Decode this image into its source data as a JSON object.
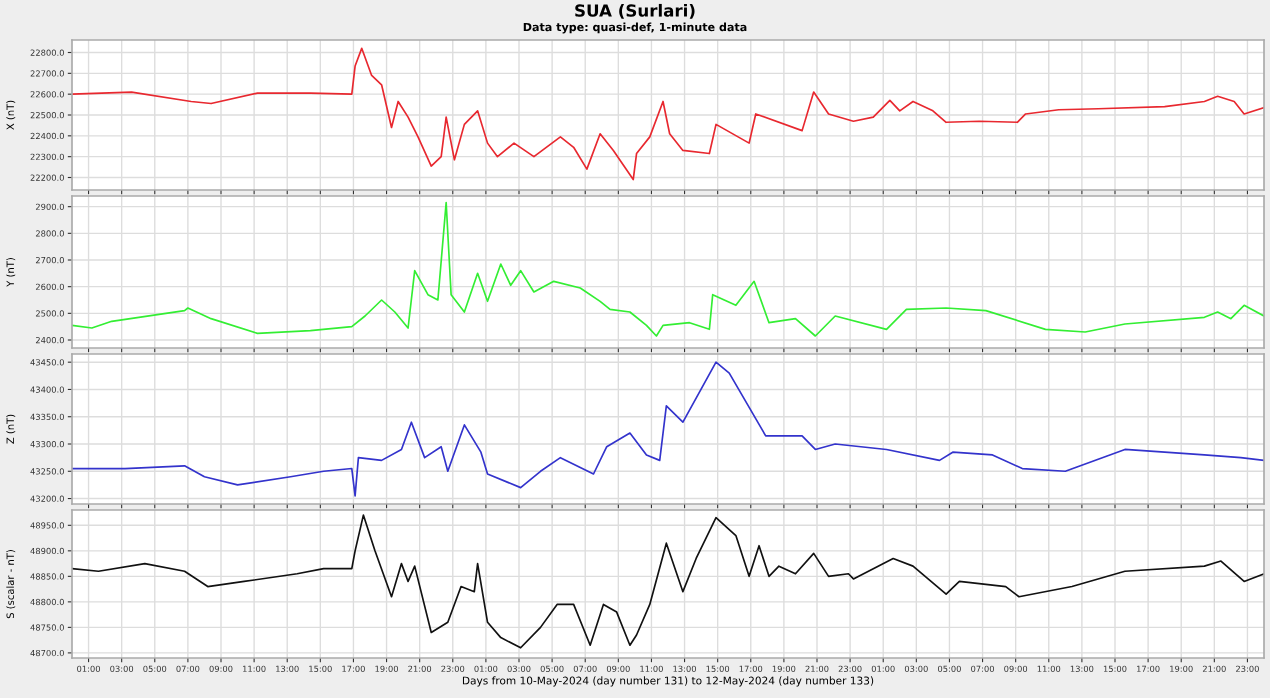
{
  "chart_data": [
    {
      "type": "line",
      "title": "SUA (Surlari)",
      "subtitle": "Data type: quasi-def, 1-minute data",
      "ylabel": "X (nT)",
      "grid": true,
      "tick_labels": "y",
      "xlim": [
        "2024-05-10T00:00",
        "2024-05-13T00:00"
      ],
      "xticks": [
        {
          "value": "2024-05-10T01:00",
          "label": null
        },
        {
          "value": "2024-05-10T03:00",
          "label": null
        },
        {
          "value": "2024-05-10T05:00",
          "label": null
        },
        {
          "value": "2024-05-10T07:00",
          "label": null
        },
        {
          "value": "2024-05-10T09:00",
          "label": null
        },
        {
          "value": "2024-05-10T11:00",
          "label": null
        },
        {
          "value": "2024-05-10T13:00",
          "label": null
        },
        {
          "value": "2024-05-10T15:00",
          "label": null
        },
        {
          "value": "2024-05-10T17:00",
          "label": null
        },
        {
          "value": "2024-05-10T19:00",
          "label": null
        },
        {
          "value": "2024-05-10T21:00",
          "label": null
        },
        {
          "value": "2024-05-10T23:00",
          "label": null
        },
        {
          "value": "2024-05-11T01:00",
          "label": null
        },
        {
          "value": "2024-05-11T03:00",
          "label": null
        },
        {
          "value": "2024-05-11T05:00",
          "label": null
        },
        {
          "value": "2024-05-11T07:00",
          "label": null
        },
        {
          "value": "2024-05-11T09:00",
          "label": null
        },
        {
          "value": "2024-05-11T11:00",
          "label": null
        },
        {
          "value": "2024-05-11T13:00",
          "label": null
        },
        {
          "value": "2024-05-11T15:00",
          "label": null
        },
        {
          "value": "2024-05-11T17:00",
          "label": null
        },
        {
          "value": "2024-05-11T19:00",
          "label": null
        },
        {
          "value": "2024-05-11T21:00",
          "label": null
        },
        {
          "value": "2024-05-11T23:00",
          "label": null
        },
        {
          "value": "2024-05-12T01:00",
          "label": null
        },
        {
          "value": "2024-05-12T03:00",
          "label": null
        },
        {
          "value": "2024-05-12T05:00",
          "label": null
        },
        {
          "value": "2024-05-12T07:00",
          "label": null
        },
        {
          "value": "2024-05-12T09:00",
          "label": null
        },
        {
          "value": "2024-05-12T11:00",
          "label": null
        },
        {
          "value": "2024-05-12T13:00",
          "label": null
        },
        {
          "value": "2024-05-12T15:00",
          "label": null
        },
        {
          "value": "2024-05-12T17:00",
          "label": null
        },
        {
          "value": "2024-05-12T19:00",
          "label": null
        },
        {
          "value": "2024-05-12T21:00",
          "label": null
        },
        {
          "value": "2024-05-12T23:00",
          "label": null
        }
      ],
      "ylim": [
        22140,
        22860
      ],
      "yticks": [
        {
          "value": 22200,
          "label": "22200.0"
        },
        {
          "value": 22300,
          "label": "22300.0"
        },
        {
          "value": 22400,
          "label": "22400.0"
        },
        {
          "value": 22500,
          "label": "22500.0"
        },
        {
          "value": 22600,
          "label": "22600.0"
        },
        {
          "value": 22700,
          "label": "22700.0"
        },
        {
          "value": 22800,
          "label": "22800.0"
        }
      ],
      "series": [
        {
          "color": "#e8282f",
          "x": [
            "2024-05-10T00:00",
            "2024-05-10T03:36",
            "2024-05-10T07:12",
            "2024-05-10T08:24",
            "2024-05-10T11:12",
            "2024-05-10T14:24",
            "2024-05-10T16:54",
            "2024-05-10T17:06",
            "2024-05-10T17:30",
            "2024-05-10T18:06",
            "2024-05-10T18:42",
            "2024-05-10T19:18",
            "2024-05-10T19:42",
            "2024-05-10T20:18",
            "2024-05-10T20:54",
            "2024-05-10T21:42",
            "2024-05-10T22:18",
            "2024-05-10T22:36",
            "2024-05-10T23:06",
            "2024-05-10T23:42",
            "2024-05-11T00:30",
            "2024-05-11T01:06",
            "2024-05-11T01:42",
            "2024-05-11T02:42",
            "2024-05-11T03:54",
            "2024-05-11T05:30",
            "2024-05-11T06:18",
            "2024-05-11T07:06",
            "2024-05-11T07:54",
            "2024-05-11T08:42",
            "2024-05-11T09:54",
            "2024-05-11T10:06",
            "2024-05-11T10:54",
            "2024-05-11T11:42",
            "2024-05-11T12:06",
            "2024-05-11T12:54",
            "2024-05-11T14:30",
            "2024-05-11T14:54",
            "2024-05-11T16:54",
            "2024-05-11T17:18",
            "2024-05-11T20:06",
            "2024-05-11T20:48",
            "2024-05-11T21:42",
            "2024-05-11T23:12",
            "2024-05-12T00:24",
            "2024-05-12T01:24",
            "2024-05-12T02:00",
            "2024-05-12T02:48",
            "2024-05-12T04:00",
            "2024-05-12T04:48",
            "2024-05-12T06:48",
            "2024-05-12T09:06",
            "2024-05-12T09:36",
            "2024-05-12T11:36",
            "2024-05-12T14:00",
            "2024-05-12T18:00",
            "2024-05-12T20:24",
            "2024-05-12T21:12",
            "2024-05-12T22:12",
            "2024-05-12T22:48",
            "2024-05-13T00:00"
          ],
          "values": [
            22600,
            22610,
            22565,
            22555,
            22605,
            22605,
            22600,
            22735,
            22820,
            22690,
            22645,
            22440,
            22565,
            22490,
            22395,
            22255,
            22300,
            22490,
            22285,
            22455,
            22520,
            22365,
            22300,
            22365,
            22300,
            22395,
            22345,
            22240,
            22410,
            22330,
            22190,
            22315,
            22395,
            22565,
            22410,
            22330,
            22315,
            22455,
            22365,
            22505,
            22425,
            22610,
            22505,
            22470,
            22490,
            22570,
            22520,
            22565,
            22520,
            22465,
            22470,
            22465,
            22505,
            22525,
            22530,
            22540,
            22565,
            22590,
            22565,
            22505,
            22535
          ]
        }
      ]
    },
    {
      "type": "line",
      "ylabel": "Y (nT)",
      "grid": true,
      "tick_labels": "y",
      "xlim": [
        "2024-05-10T00:00",
        "2024-05-13T00:00"
      ],
      "xticks": [
        {
          "value": "2024-05-10T01:00",
          "label": null
        },
        {
          "value": "2024-05-10T03:00",
          "label": null
        },
        {
          "value": "2024-05-10T05:00",
          "label": null
        },
        {
          "value": "2024-05-10T07:00",
          "label": null
        },
        {
          "value": "2024-05-10T09:00",
          "label": null
        },
        {
          "value": "2024-05-10T11:00",
          "label": null
        },
        {
          "value": "2024-05-10T13:00",
          "label": null
        },
        {
          "value": "2024-05-10T15:00",
          "label": null
        },
        {
          "value": "2024-05-10T17:00",
          "label": null
        },
        {
          "value": "2024-05-10T19:00",
          "label": null
        },
        {
          "value": "2024-05-10T21:00",
          "label": null
        },
        {
          "value": "2024-05-10T23:00",
          "label": null
        },
        {
          "value": "2024-05-11T01:00",
          "label": null
        },
        {
          "value": "2024-05-11T03:00",
          "label": null
        },
        {
          "value": "2024-05-11T05:00",
          "label": null
        },
        {
          "value": "2024-05-11T07:00",
          "label": null
        },
        {
          "value": "2024-05-11T09:00",
          "label": null
        },
        {
          "value": "2024-05-11T11:00",
          "label": null
        },
        {
          "value": "2024-05-11T13:00",
          "label": null
        },
        {
          "value": "2024-05-11T15:00",
          "label": null
        },
        {
          "value": "2024-05-11T17:00",
          "label": null
        },
        {
          "value": "2024-05-11T19:00",
          "label": null
        },
        {
          "value": "2024-05-11T21:00",
          "label": null
        },
        {
          "value": "2024-05-11T23:00",
          "label": null
        },
        {
          "value": "2024-05-12T01:00",
          "label": null
        },
        {
          "value": "2024-05-12T03:00",
          "label": null
        },
        {
          "value": "2024-05-12T05:00",
          "label": null
        },
        {
          "value": "2024-05-12T07:00",
          "label": null
        },
        {
          "value": "2024-05-12T09:00",
          "label": null
        },
        {
          "value": "2024-05-12T11:00",
          "label": null
        },
        {
          "value": "2024-05-12T13:00",
          "label": null
        },
        {
          "value": "2024-05-12T15:00",
          "label": null
        },
        {
          "value": "2024-05-12T17:00",
          "label": null
        },
        {
          "value": "2024-05-12T19:00",
          "label": null
        },
        {
          "value": "2024-05-12T21:00",
          "label": null
        },
        {
          "value": "2024-05-12T23:00",
          "label": null
        }
      ],
      "ylim": [
        2370,
        2940
      ],
      "yticks": [
        {
          "value": 2400,
          "label": "2400.0"
        },
        {
          "value": 2500,
          "label": "2500.0"
        },
        {
          "value": 2600,
          "label": "2600.0"
        },
        {
          "value": 2700,
          "label": "2700.0"
        },
        {
          "value": 2800,
          "label": "2800.0"
        },
        {
          "value": 2900,
          "label": "2900.0"
        }
      ],
      "series": [
        {
          "color": "#33ee33",
          "x": [
            "2024-05-10T00:00",
            "2024-05-10T01:12",
            "2024-05-10T02:24",
            "2024-05-10T06:48",
            "2024-05-10T07:00",
            "2024-05-10T08:24",
            "2024-05-10T11:12",
            "2024-05-10T14:24",
            "2024-05-10T16:54",
            "2024-05-10T17:42",
            "2024-05-10T18:42",
            "2024-05-10T19:30",
            "2024-05-10T20:18",
            "2024-05-10T20:42",
            "2024-05-10T21:30",
            "2024-05-10T22:06",
            "2024-05-10T22:36",
            "2024-05-10T22:54",
            "2024-05-10T23:42",
            "2024-05-11T00:30",
            "2024-05-11T01:06",
            "2024-05-11T01:54",
            "2024-05-11T02:30",
            "2024-05-11T03:06",
            "2024-05-11T03:54",
            "2024-05-11T05:06",
            "2024-05-11T06:42",
            "2024-05-11T07:54",
            "2024-05-11T08:30",
            "2024-05-11T09:42",
            "2024-05-11T10:42",
            "2024-05-11T11:18",
            "2024-05-11T11:42",
            "2024-05-11T13:18",
            "2024-05-11T14:30",
            "2024-05-11T14:42",
            "2024-05-11T16:06",
            "2024-05-11T17:12",
            "2024-05-11T18:06",
            "2024-05-11T19:42",
            "2024-05-11T20:54",
            "2024-05-11T22:06",
            "2024-05-12T01:12",
            "2024-05-12T02:24",
            "2024-05-12T04:48",
            "2024-05-12T07:12",
            "2024-05-12T10:48",
            "2024-05-12T13:12",
            "2024-05-12T15:36",
            "2024-05-12T20:24",
            "2024-05-12T21:12",
            "2024-05-12T22:00",
            "2024-05-12T22:48",
            "2024-05-13T00:00"
          ],
          "values": [
            2455,
            2445,
            2470,
            2510,
            2520,
            2480,
            2425,
            2435,
            2450,
            2490,
            2550,
            2505,
            2445,
            2660,
            2570,
            2550,
            2915,
            2570,
            2505,
            2650,
            2545,
            2685,
            2605,
            2660,
            2580,
            2620,
            2595,
            2545,
            2515,
            2505,
            2455,
            2415,
            2455,
            2465,
            2440,
            2570,
            2530,
            2620,
            2465,
            2480,
            2415,
            2490,
            2440,
            2515,
            2520,
            2510,
            2440,
            2430,
            2460,
            2485,
            2505,
            2480,
            2530,
            2490
          ]
        }
      ]
    },
    {
      "type": "line",
      "ylabel": "Z (nT)",
      "grid": true,
      "tick_labels": "y",
      "xlim": [
        "2024-05-10T00:00",
        "2024-05-13T00:00"
      ],
      "xticks": [
        {
          "value": "2024-05-10T01:00",
          "label": null
        },
        {
          "value": "2024-05-10T03:00",
          "label": null
        },
        {
          "value": "2024-05-10T05:00",
          "label": null
        },
        {
          "value": "2024-05-10T07:00",
          "label": null
        },
        {
          "value": "2024-05-10T09:00",
          "label": null
        },
        {
          "value": "2024-05-10T11:00",
          "label": null
        },
        {
          "value": "2024-05-10T13:00",
          "label": null
        },
        {
          "value": "2024-05-10T15:00",
          "label": null
        },
        {
          "value": "2024-05-10T17:00",
          "label": null
        },
        {
          "value": "2024-05-10T19:00",
          "label": null
        },
        {
          "value": "2024-05-10T21:00",
          "label": null
        },
        {
          "value": "2024-05-10T23:00",
          "label": null
        },
        {
          "value": "2024-05-11T01:00",
          "label": null
        },
        {
          "value": "2024-05-11T03:00",
          "label": null
        },
        {
          "value": "2024-05-11T05:00",
          "label": null
        },
        {
          "value": "2024-05-11T07:00",
          "label": null
        },
        {
          "value": "2024-05-11T09:00",
          "label": null
        },
        {
          "value": "2024-05-11T11:00",
          "label": null
        },
        {
          "value": "2024-05-11T13:00",
          "label": null
        },
        {
          "value": "2024-05-11T15:00",
          "label": null
        },
        {
          "value": "2024-05-11T17:00",
          "label": null
        },
        {
          "value": "2024-05-11T19:00",
          "label": null
        },
        {
          "value": "2024-05-11T21:00",
          "label": null
        },
        {
          "value": "2024-05-11T23:00",
          "label": null
        },
        {
          "value": "2024-05-12T01:00",
          "label": null
        },
        {
          "value": "2024-05-12T03:00",
          "label": null
        },
        {
          "value": "2024-05-12T05:00",
          "label": null
        },
        {
          "value": "2024-05-12T07:00",
          "label": null
        },
        {
          "value": "2024-05-12T09:00",
          "label": null
        },
        {
          "value": "2024-05-12T11:00",
          "label": null
        },
        {
          "value": "2024-05-12T13:00",
          "label": null
        },
        {
          "value": "2024-05-12T15:00",
          "label": null
        },
        {
          "value": "2024-05-12T17:00",
          "label": null
        },
        {
          "value": "2024-05-12T19:00",
          "label": null
        },
        {
          "value": "2024-05-12T21:00",
          "label": null
        },
        {
          "value": "2024-05-12T23:00",
          "label": null
        }
      ],
      "ylim": [
        43190,
        43465
      ],
      "yticks": [
        {
          "value": 43200,
          "label": "43200.0"
        },
        {
          "value": 43250,
          "label": "43250.0"
        },
        {
          "value": 43300,
          "label": "43300.0"
        },
        {
          "value": 43350,
          "label": "43350.0"
        },
        {
          "value": 43400,
          "label": "43400.0"
        },
        {
          "value": 43450,
          "label": "43450.0"
        }
      ],
      "series": [
        {
          "color": "#3333cc",
          "x": [
            "2024-05-10T00:00",
            "2024-05-10T03:12",
            "2024-05-10T06:48",
            "2024-05-10T08:00",
            "2024-05-10T10:00",
            "2024-05-10T13:12",
            "2024-05-10T15:12",
            "2024-05-10T16:54",
            "2024-05-10T17:06",
            "2024-05-10T17:18",
            "2024-05-10T18:42",
            "2024-05-10T19:54",
            "2024-05-10T20:30",
            "2024-05-10T21:18",
            "2024-05-10T22:18",
            "2024-05-10T22:42",
            "2024-05-10T23:42",
            "2024-05-11T00:42",
            "2024-05-11T01:06",
            "2024-05-11T03:06",
            "2024-05-11T04:18",
            "2024-05-11T05:30",
            "2024-05-11T07:30",
            "2024-05-11T08:18",
            "2024-05-11T09:42",
            "2024-05-11T10:42",
            "2024-05-11T11:30",
            "2024-05-11T11:54",
            "2024-05-11T12:54",
            "2024-05-11T14:54",
            "2024-05-11T15:42",
            "2024-05-11T17:54",
            "2024-05-11T20:06",
            "2024-05-11T20:54",
            "2024-05-11T22:06",
            "2024-05-12T01:12",
            "2024-05-12T04:24",
            "2024-05-12T05:12",
            "2024-05-12T07:36",
            "2024-05-12T09:24",
            "2024-05-12T12:00",
            "2024-05-12T15:36",
            "2024-05-12T20:24",
            "2024-05-12T22:36",
            "2024-05-13T00:00"
          ],
          "values": [
            43255,
            43255,
            43260,
            43240,
            43225,
            43240,
            43250,
            43255,
            43205,
            43275,
            43270,
            43290,
            43340,
            43275,
            43295,
            43250,
            43335,
            43285,
            43245,
            43220,
            43250,
            43275,
            43245,
            43295,
            43320,
            43280,
            43270,
            43370,
            43340,
            43450,
            43430,
            43315,
            43315,
            43290,
            43300,
            43290,
            43270,
            43285,
            43280,
            43255,
            43250,
            43290,
            43280,
            43275,
            43270
          ]
        }
      ]
    },
    {
      "type": "line",
      "ylabel": "S (scalar - nT)",
      "xlabel": "Days from 10-May-2024 (day number 131) to 12-May-2024 (day number 133)",
      "grid": true,
      "xlim": [
        "2024-05-10T00:00",
        "2024-05-13T00:00"
      ],
      "xticks": [
        {
          "value": "2024-05-10T01:00",
          "label": "01:00"
        },
        {
          "value": "2024-05-10T03:00",
          "label": "03:00"
        },
        {
          "value": "2024-05-10T05:00",
          "label": "05:00"
        },
        {
          "value": "2024-05-10T07:00",
          "label": "07:00"
        },
        {
          "value": "2024-05-10T09:00",
          "label": "09:00"
        },
        {
          "value": "2024-05-10T11:00",
          "label": "11:00"
        },
        {
          "value": "2024-05-10T13:00",
          "label": "13:00"
        },
        {
          "value": "2024-05-10T15:00",
          "label": "15:00"
        },
        {
          "value": "2024-05-10T17:00",
          "label": "17:00"
        },
        {
          "value": "2024-05-10T19:00",
          "label": "19:00"
        },
        {
          "value": "2024-05-10T21:00",
          "label": "21:00"
        },
        {
          "value": "2024-05-10T23:00",
          "label": "23:00"
        },
        {
          "value": "2024-05-11T01:00",
          "label": "01:00"
        },
        {
          "value": "2024-05-11T03:00",
          "label": "03:00"
        },
        {
          "value": "2024-05-11T05:00",
          "label": "05:00"
        },
        {
          "value": "2024-05-11T07:00",
          "label": "07:00"
        },
        {
          "value": "2024-05-11T09:00",
          "label": "09:00"
        },
        {
          "value": "2024-05-11T11:00",
          "label": "11:00"
        },
        {
          "value": "2024-05-11T13:00",
          "label": "13:00"
        },
        {
          "value": "2024-05-11T15:00",
          "label": "15:00"
        },
        {
          "value": "2024-05-11T17:00",
          "label": "17:00"
        },
        {
          "value": "2024-05-11T19:00",
          "label": "19:00"
        },
        {
          "value": "2024-05-11T21:00",
          "label": "21:00"
        },
        {
          "value": "2024-05-11T23:00",
          "label": "23:00"
        },
        {
          "value": "2024-05-12T01:00",
          "label": "01:00"
        },
        {
          "value": "2024-05-12T03:00",
          "label": "03:00"
        },
        {
          "value": "2024-05-12T05:00",
          "label": "05:00"
        },
        {
          "value": "2024-05-12T07:00",
          "label": "07:00"
        },
        {
          "value": "2024-05-12T09:00",
          "label": "09:00"
        },
        {
          "value": "2024-05-12T11:00",
          "label": "11:00"
        },
        {
          "value": "2024-05-12T13:00",
          "label": "13:00"
        },
        {
          "value": "2024-05-12T15:00",
          "label": "15:00"
        },
        {
          "value": "2024-05-12T17:00",
          "label": "17:00"
        },
        {
          "value": "2024-05-12T19:00",
          "label": "19:00"
        },
        {
          "value": "2024-05-12T21:00",
          "label": "21:00"
        },
        {
          "value": "2024-05-12T23:00",
          "label": "23:00"
        }
      ],
      "ylim": [
        48690,
        48980
      ],
      "yticks": [
        {
          "value": 48700,
          "label": "48700.0"
        },
        {
          "value": 48750,
          "label": "48750.0"
        },
        {
          "value": 48800,
          "label": "48800.0"
        },
        {
          "value": 48850,
          "label": "48850.0"
        },
        {
          "value": 48900,
          "label": "48900.0"
        },
        {
          "value": 48950,
          "label": "48950.0"
        }
      ],
      "series": [
        {
          "color": "#111111",
          "x": [
            "2024-05-10T00:00",
            "2024-05-10T01:36",
            "2024-05-10T04:24",
            "2024-05-10T06:48",
            "2024-05-10T08:12",
            "2024-05-10T10:24",
            "2024-05-10T13:36",
            "2024-05-10T15:12",
            "2024-05-10T16:54",
            "2024-05-10T17:06",
            "2024-05-10T17:36",
            "2024-05-10T18:18",
            "2024-05-10T19:18",
            "2024-05-10T19:54",
            "2024-05-10T20:18",
            "2024-05-10T20:42",
            "2024-05-10T21:42",
            "2024-05-10T22:42",
            "2024-05-10T23:30",
            "2024-05-11T00:18",
            "2024-05-11T00:30",
            "2024-05-11T01:06",
            "2024-05-11T01:54",
            "2024-05-11T03:06",
            "2024-05-11T04:18",
            "2024-05-11T05:18",
            "2024-05-11T06:18",
            "2024-05-11T07:18",
            "2024-05-11T08:06",
            "2024-05-11T08:54",
            "2024-05-11T09:42",
            "2024-05-11T10:06",
            "2024-05-11T10:54",
            "2024-05-11T11:54",
            "2024-05-11T12:54",
            "2024-05-11T13:42",
            "2024-05-11T14:54",
            "2024-05-11T16:06",
            "2024-05-11T16:54",
            "2024-05-11T17:30",
            "2024-05-11T18:06",
            "2024-05-11T18:42",
            "2024-05-11T19:42",
            "2024-05-11T20:48",
            "2024-05-11T21:42",
            "2024-05-11T22:54",
            "2024-05-11T23:12",
            "2024-05-12T01:36",
            "2024-05-12T02:48",
            "2024-05-12T04:48",
            "2024-05-12T05:36",
            "2024-05-12T08:24",
            "2024-05-12T09:12",
            "2024-05-12T12:24",
            "2024-05-12T15:36",
            "2024-05-12T20:24",
            "2024-05-12T21:24",
            "2024-05-12T22:48",
            "2024-05-13T00:00"
          ],
          "values": [
            48865,
            48860,
            48875,
            48860,
            48830,
            48840,
            48855,
            48865,
            48865,
            48900,
            48970,
            48900,
            48810,
            48875,
            48840,
            48870,
            48740,
            48760,
            48830,
            48820,
            48875,
            48760,
            48730,
            48710,
            48750,
            48795,
            48795,
            48715,
            48795,
            48780,
            48715,
            48735,
            48795,
            48915,
            48820,
            48885,
            48965,
            48930,
            48850,
            48910,
            48850,
            48870,
            48855,
            48895,
            48850,
            48855,
            48845,
            48885,
            48870,
            48815,
            48840,
            48830,
            48810,
            48830,
            48860,
            48870,
            48880,
            48840,
            48855
          ]
        }
      ]
    }
  ]
}
